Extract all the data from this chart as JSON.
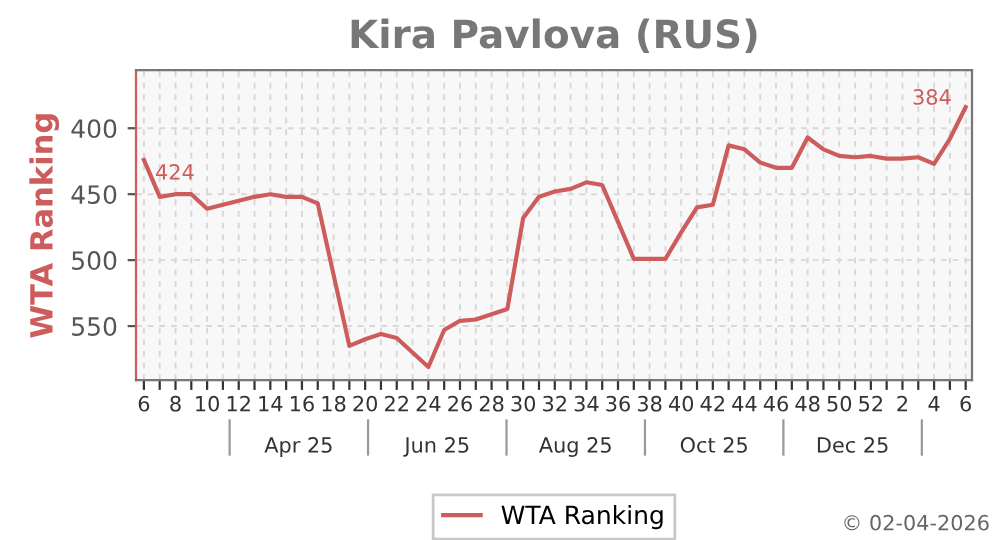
{
  "chart_data": {
    "type": "line",
    "title": "Kira Pavlova (RUS)",
    "ylabel": "WTA Ranking",
    "categories": [
      "6",
      null,
      "8",
      null,
      "10",
      null,
      "12",
      null,
      "14",
      null,
      "16",
      null,
      "18",
      null,
      "20",
      null,
      "22",
      null,
      "24",
      null,
      "26",
      null,
      "28",
      null,
      "30",
      null,
      "32",
      null,
      "34",
      null,
      "36",
      null,
      "38",
      null,
      "40",
      null,
      "42",
      null,
      "44",
      null,
      "46",
      null,
      "48",
      null,
      "50",
      null,
      "52",
      null,
      "2",
      null,
      "4",
      null,
      "6"
    ],
    "series": [
      {
        "name": "WTA Ranking",
        "color": "#cd5c5c",
        "values": [
          424,
          452,
          450,
          450,
          461,
          458,
          455,
          452,
          450,
          452,
          452,
          457,
          511,
          565,
          560,
          556,
          559,
          570,
          581,
          553,
          546,
          545,
          541,
          537,
          468,
          452,
          448,
          446,
          441,
          443,
          471,
          499,
          499,
          499,
          479,
          460,
          458,
          413,
          416,
          426,
          430,
          430,
          407,
          416,
          421,
          422,
          421,
          423,
          423,
          422,
          427,
          408,
          384
        ],
        "value_labels": [
          "424",
          null,
          null,
          null,
          null,
          null,
          null,
          null,
          null,
          null,
          null,
          null,
          null,
          null,
          null,
          null,
          null,
          null,
          null,
          null,
          null,
          null,
          null,
          null,
          null,
          null,
          null,
          null,
          null,
          null,
          null,
          null,
          null,
          null,
          null,
          null,
          null,
          null,
          null,
          null,
          null,
          null,
          null,
          null,
          null,
          null,
          null,
          null,
          null,
          null,
          null,
          null,
          "384"
        ]
      }
    ],
    "ylim": [
      591,
      356
    ],
    "yticks": [
      400,
      450,
      500,
      550
    ],
    "grid": true,
    "legend": "bottom",
    "marker": "none",
    "line_style": "solid",
    "annotations": [
      "Apr 25",
      "Jun 25",
      "Aug 25",
      "Oct 25",
      "Dec 25",
      "© 02-04-2026"
    ]
  }
}
